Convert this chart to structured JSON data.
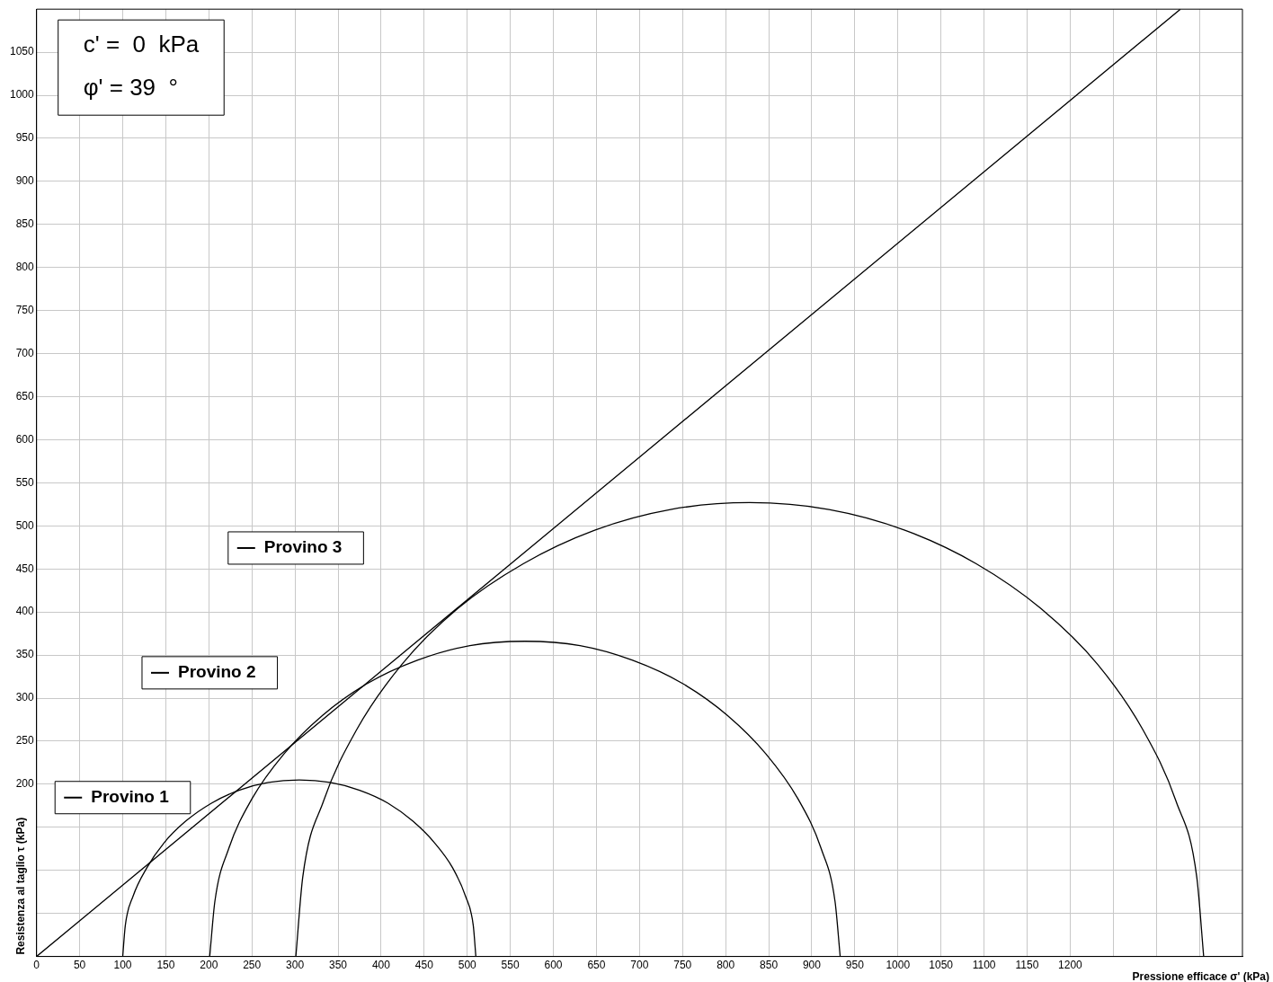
{
  "chart_data": {
    "type": "line",
    "xlabel": "Pressione efficace σ' (kPa)",
    "ylabel": "Resistenza al taglio τ (kPa)",
    "xlim": [
      0,
      1400
    ],
    "ylim": [
      0,
      1100
    ],
    "xticks": [
      0,
      50,
      100,
      150,
      200,
      250,
      300,
      350,
      400,
      450,
      500,
      550,
      600,
      650,
      700,
      750,
      800,
      850,
      900,
      950,
      1000,
      1050,
      1100,
      1150,
      1200,
      {
        "value": 1250,
        "label": null
      },
      {
        "value": 1300,
        "label": null
      },
      {
        "value": 1350,
        "label": null
      }
    ],
    "yticks": [
      {
        "value": 0,
        "label": null
      },
      {
        "value": 50,
        "label": null
      },
      {
        "value": 100,
        "label": null
      },
      {
        "value": 150,
        "label": null
      },
      200,
      250,
      300,
      350,
      400,
      450,
      500,
      550,
      600,
      650,
      700,
      750,
      800,
      850,
      900,
      950,
      1000,
      1050
    ],
    "grid": true,
    "legend": "left",
    "marker": "none",
    "line_style": "solid",
    "series": [
      {
        "color": "#000000",
        "x": [
          0,
          1328
        ],
        "values": [
          0,
          1100
        ]
      },
      {
        "name": "Provino 1",
        "color": "#000000",
        "x": [
          100,
          103,
          112,
          128,
          148,
          173,
          203,
          235,
          269,
          305,
          341,
          375,
          408,
          437,
          462,
          483,
          498,
          507,
          510
        ],
        "values": [
          0,
          36,
          70,
          103,
          132,
          157,
          178,
          193,
          202,
          205,
          202,
          193,
          178,
          157,
          132,
          103,
          70,
          36,
          0
        ]
      },
      {
        "name": "Provino 2",
        "color": "#000000",
        "x": [
          201,
          207,
          223,
          250,
          287,
          332,
          384,
          442,
          503,
          567,
          631,
          692,
          750,
          802,
          847,
          884,
          911,
          927,
          933
        ],
        "values": [
          0,
          64,
          125,
          183,
          235,
          280,
          317,
          344,
          361,
          366,
          361,
          344,
          317,
          280,
          235,
          183,
          125,
          64,
          0
        ]
      },
      {
        "name": "Provino 3",
        "color": "#000000",
        "x": [
          301,
          309,
          333,
          372,
          424,
          489,
          565,
          648,
          736,
          828,
          920,
          1008,
          1091,
          1166,
          1232,
          1284,
          1323,
          1347,
          1355
        ],
        "values": [
          0,
          92,
          180,
          264,
          339,
          404,
          456,
          495,
          519,
          527,
          519,
          495,
          456,
          404,
          339,
          264,
          180,
          92,
          0
        ]
      }
    ],
    "annotations": [
      "c' =  0  kPa",
      "φ' = 39  °"
    ]
  }
}
